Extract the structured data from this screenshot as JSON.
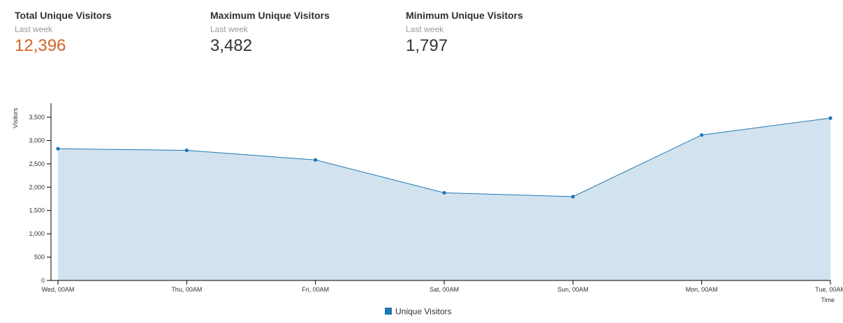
{
  "stats": [
    {
      "title": "Total Unique Visitors",
      "period": "Last week",
      "value": "12,396",
      "accent": true
    },
    {
      "title": "Maximum Unique Visitors",
      "period": "Last week",
      "value": "3,482",
      "accent": false
    },
    {
      "title": "Minimum Unique Visitors",
      "period": "Last week",
      "value": "1,797",
      "accent": false
    }
  ],
  "colors": {
    "accent": "#d2622b",
    "line": "#1f77b4",
    "area": "#d2e3ef",
    "axis": "#000000"
  },
  "chart_data": {
    "type": "area",
    "title": "",
    "xlabel": "Time",
    "ylabel": "Visitors",
    "x": [
      "Wed, 00AM",
      "Thu, 00AM",
      "Fri, 00AM",
      "Sat, 00AM",
      "Sun, 00AM",
      "Mon, 00AM",
      "Tue, 00AM"
    ],
    "series": [
      {
        "name": "Unique Visitors",
        "values": [
          2825,
          2790,
          2585,
          1880,
          1797,
          3120,
          3482
        ]
      }
    ],
    "yticks": [
      "0",
      "500",
      "1,000",
      "1,500",
      "2,000",
      "2,500",
      "3,000",
      "3,500"
    ],
    "ylim": [
      0,
      3800
    ],
    "grid": false,
    "legend": "bottom-center"
  }
}
